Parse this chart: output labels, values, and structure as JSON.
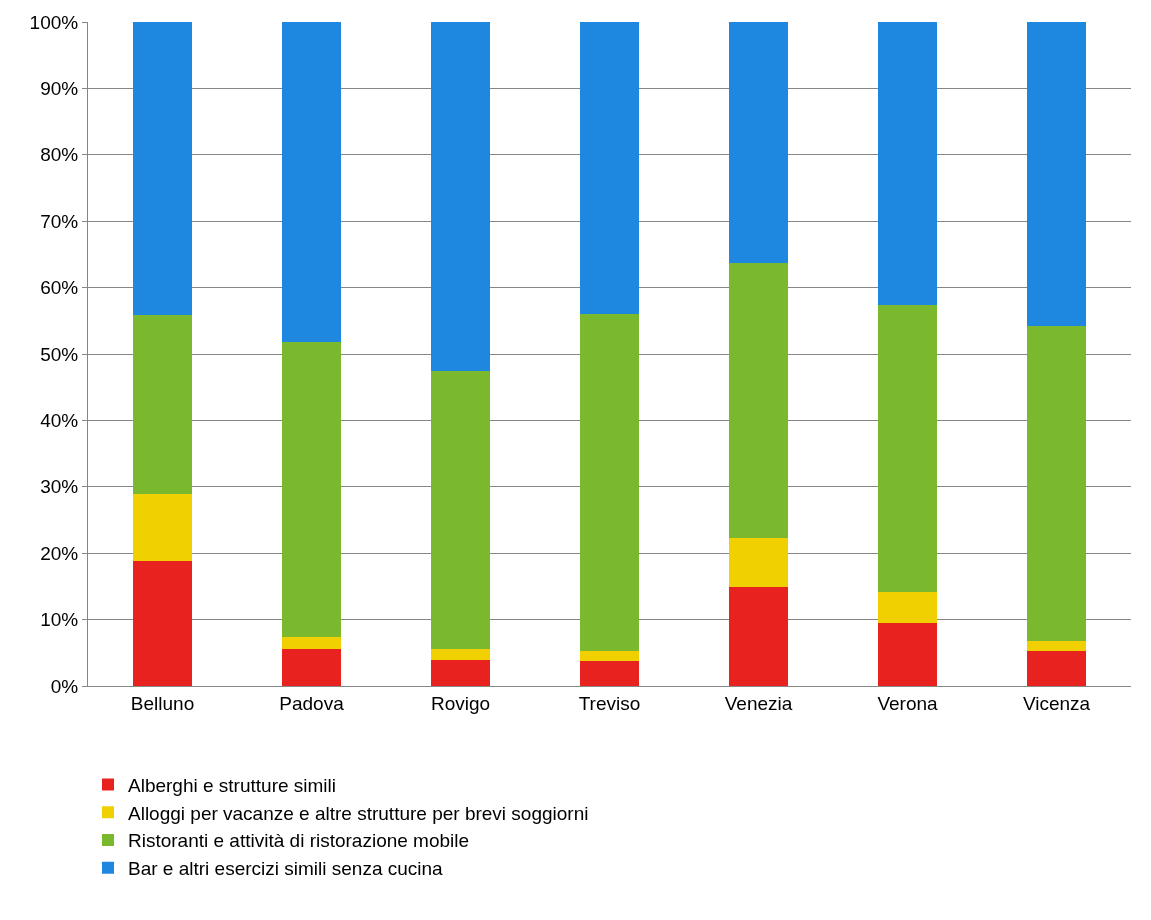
{
  "chart_data": {
    "type": "bar",
    "stacked": true,
    "categories": [
      "Belluno",
      "Padova",
      "Rovigo",
      "Treviso",
      "Venezia",
      "Verona",
      "Vicenza"
    ],
    "series": [
      {
        "name": "Alberghi e strutture simili",
        "color": "#e8231f",
        "values": [
          18.8,
          5.6,
          3.9,
          3.8,
          14.9,
          9.5,
          5.3
        ]
      },
      {
        "name": "Alloggi per vacanze e altre strutture per brevi soggiorni",
        "color": "#f0d000",
        "values": [
          10.1,
          1.8,
          1.7,
          1.5,
          7.4,
          4.7,
          1.5
        ]
      },
      {
        "name": "Ristoranti e attività di ristorazione mobile",
        "color": "#7ab82e",
        "values": [
          27.0,
          44.4,
          41.8,
          50.7,
          41.4,
          43.2,
          47.4
        ]
      },
      {
        "name": "Bar e altri esercizi simili senza cucina",
        "color": "#1e88e0",
        "values": [
          44.1,
          48.2,
          52.6,
          44.0,
          36.3,
          42.6,
          45.8
        ]
      }
    ],
    "ylim": [
      0,
      100
    ],
    "yticks": [
      {
        "value": 0,
        "label": "0%"
      },
      {
        "value": 10,
        "label": "10%"
      },
      {
        "value": 20,
        "label": "20%"
      },
      {
        "value": 30,
        "label": "30%"
      },
      {
        "value": 40,
        "label": "40%"
      },
      {
        "value": 50,
        "label": "50%"
      },
      {
        "value": 60,
        "label": "60%"
      },
      {
        "value": 70,
        "label": "70%"
      },
      {
        "value": 80,
        "label": "80%"
      },
      {
        "value": 90,
        "label": "90%"
      },
      {
        "value": 100,
        "label": "100%"
      }
    ],
    "grid": "y",
    "legend": "bottom"
  }
}
